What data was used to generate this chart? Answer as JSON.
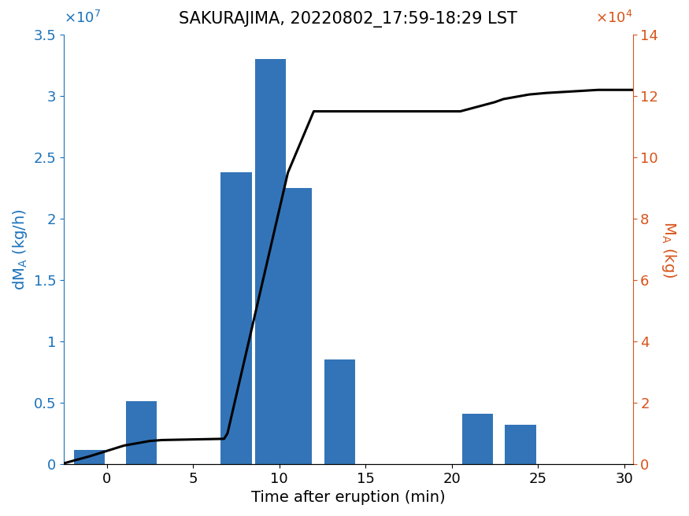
{
  "title": "SAKURAJIMA, 20220802_17:59-18:29 LST",
  "xlabel": "Time after eruption (min)",
  "ylabel_left": "dM$_A$ (kg/h)",
  "ylabel_right": "M$_A$ (kg)",
  "bar_centers": [
    -1.0,
    2.0,
    7.5,
    9.5,
    11.0,
    13.5,
    21.5,
    24.0
  ],
  "bar_heights": [
    1150000.0,
    5100000.0,
    23800000.0,
    33000000.0,
    22500000.0,
    8500000.0,
    4100000.0,
    3200000.0
  ],
  "bar_width": 1.8,
  "bar_color": "#3374b8",
  "xlim": [
    -2.5,
    30.5
  ],
  "ylim_left": [
    0,
    35000000.0
  ],
  "ylim_right": [
    0,
    140000.0
  ],
  "yticks_left": [
    0,
    5000000.0,
    10000000.0,
    15000000.0,
    20000000.0,
    25000000.0,
    30000000.0,
    35000000.0
  ],
  "ytick_labels_left": [
    "0",
    "0.5",
    "1",
    "1.5",
    "2",
    "2.5",
    "3",
    "3.5"
  ],
  "yticks_right": [
    0,
    20000.0,
    40000.0,
    60000.0,
    80000.0,
    100000.0,
    120000.0,
    140000.0
  ],
  "ytick_labels_right": [
    "0",
    "2",
    "4",
    "6",
    "8",
    "10",
    "12",
    "14"
  ],
  "xticks": [
    0,
    5,
    10,
    15,
    20,
    25,
    30
  ],
  "line_x": [
    -2.5,
    -1.0,
    1.0,
    2.5,
    3.2,
    6.8,
    7.0,
    10.5,
    12.0,
    14.5,
    19.5,
    20.5,
    21.5,
    22.5,
    23.0,
    24.5,
    25.5,
    28.5,
    30.5
  ],
  "line_y": [
    200.0,
    2500.0,
    6000.0,
    7500.0,
    7800.0,
    8200.0,
    10000.0,
    95000.0,
    115000.0,
    115000.0,
    115000.0,
    115000.0,
    116500.0,
    118000.0,
    119000.0,
    120500.0,
    121000.0,
    122000.0,
    122000.0
  ],
  "line_color": "black",
  "line_width": 2.2,
  "title_fontsize": 15,
  "axis_label_fontsize": 14,
  "tick_fontsize": 13,
  "blue_color": "#1a72bb",
  "orange_color": "#d95319",
  "fig_width": 8.75,
  "fig_height": 6.56,
  "dpi": 100
}
